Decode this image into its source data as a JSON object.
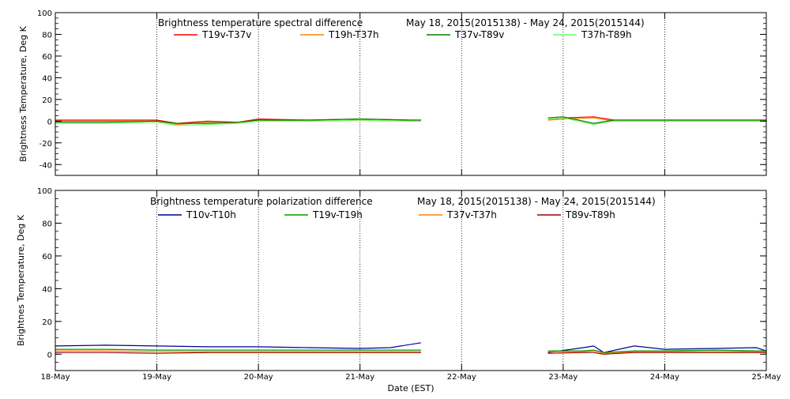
{
  "x_axis": {
    "title": "Date (EST)",
    "tick_labels": [
      "18-May",
      "19-May",
      "20-May",
      "21-May",
      "22-May",
      "23-May",
      "24-May",
      "25-May"
    ]
  },
  "chart_data": [
    {
      "type": "line",
      "title": "Brightness temperature spectral difference",
      "subtitle": "May 18, 2015(2015138) - May 24, 2015(2015144)",
      "xlabel": "",
      "ylabel": "Brightness Temperature, Deg K",
      "x_unit": "day of May 2015",
      "xlim": [
        18,
        25
      ],
      "ylim": [
        -50,
        100
      ],
      "yticks": [
        -40,
        -20,
        0,
        20,
        40,
        60,
        80,
        100
      ],
      "ytick_labels": [
        "-40",
        "-20",
        "0",
        "20",
        "40",
        "60",
        "80",
        "100"
      ],
      "grid": "vertical dotted lines at each day",
      "legend_position": "top",
      "series": [
        {
          "name": "T19v-T37v",
          "color": "#ff0000",
          "x": [
            18.0,
            18.5,
            19.0,
            19.2,
            19.5,
            19.8,
            20.0,
            20.5,
            21.0,
            21.5,
            21.6,
            22.85,
            23.0,
            23.3,
            23.5,
            24.0,
            24.5,
            25.0
          ],
          "values": [
            1,
            1,
            1,
            -2,
            0,
            -1,
            2,
            1,
            2,
            1,
            1,
            2,
            3,
            4,
            1,
            1,
            1,
            1
          ]
        },
        {
          "name": "T19h-T37h",
          "color": "#ff8000",
          "x": [
            18.0,
            18.5,
            19.0,
            19.2,
            19.5,
            19.8,
            20.0,
            20.5,
            21.0,
            21.5,
            21.6,
            22.85,
            23.0,
            23.3,
            23.5,
            24.0,
            24.5,
            25.0
          ],
          "values": [
            0,
            0,
            0,
            -3,
            -1,
            -2,
            1,
            0,
            1,
            0,
            0,
            1,
            2,
            3,
            0,
            0,
            0,
            0
          ]
        },
        {
          "name": "T37v-T89v",
          "color": "#008000",
          "x": [
            18.0,
            18.5,
            19.0,
            19.2,
            19.5,
            19.8,
            20.0,
            20.5,
            21.0,
            21.5,
            21.6,
            22.85,
            23.0,
            23.3,
            23.5,
            24.0,
            24.5,
            25.0
          ],
          "values": [
            -1,
            -1,
            0,
            -2,
            -2,
            -1,
            1,
            1,
            2,
            1,
            1,
            3,
            4,
            -2,
            1,
            1,
            1,
            1
          ]
        },
        {
          "name": "T37h-T89h",
          "color": "#66ff66",
          "x": [
            18.0,
            18.5,
            19.0,
            19.2,
            19.5,
            19.8,
            20.0,
            20.5,
            21.0,
            21.5,
            21.6,
            22.85,
            23.0,
            23.3,
            23.5,
            24.0,
            24.5,
            25.0
          ],
          "values": [
            -2,
            -2,
            -1,
            -4,
            -3,
            -2,
            0,
            0,
            1,
            0,
            0,
            2,
            3,
            -3,
            0,
            0,
            0,
            0
          ]
        }
      ]
    },
    {
      "type": "line",
      "title": "Brightness temperature polarization difference",
      "subtitle": "May 18, 2015(2015138) - May 24, 2015(2015144)",
      "xlabel": "Date (EST)",
      "ylabel": "Brightnes Temperature, Deg K",
      "x_unit": "day of May 2015",
      "xlim": [
        18,
        25
      ],
      "ylim": [
        -10,
        100
      ],
      "yticks": [
        0,
        20,
        40,
        60,
        80,
        100
      ],
      "ytick_labels": [
        "0",
        "20",
        "40",
        "60",
        "80",
        "100"
      ],
      "grid": "vertical dotted lines at each day",
      "legend_position": "top",
      "series": [
        {
          "name": "T10v-T10h",
          "color": "#000099",
          "x": [
            18.0,
            18.5,
            19.0,
            19.5,
            20.0,
            20.5,
            21.0,
            21.3,
            21.6,
            22.85,
            23.2,
            23.3,
            23.4,
            23.7,
            24.0,
            24.5,
            24.9,
            25.0
          ],
          "values": [
            5,
            5.5,
            5,
            4.5,
            4.5,
            4,
            3.5,
            4,
            7,
            1,
            4,
            5,
            1,
            5,
            3,
            3.5,
            4,
            2
          ]
        },
        {
          "name": "T19v-T19h",
          "color": "#009900",
          "x": [
            18.0,
            18.5,
            19.0,
            19.5,
            20.0,
            20.5,
            21.0,
            21.3,
            21.6,
            22.85,
            23.2,
            23.3,
            23.4,
            23.7,
            24.0,
            24.5,
            24.9,
            25.0
          ],
          "values": [
            3,
            3,
            2.5,
            2.5,
            2.5,
            2.5,
            2.5,
            2.5,
            2.5,
            2,
            2,
            2.5,
            1,
            2,
            2,
            2.5,
            2,
            2
          ]
        },
        {
          "name": "T37v-T37h",
          "color": "#ff8000",
          "x": [
            18.0,
            18.5,
            19.0,
            19.5,
            20.0,
            20.5,
            21.0,
            21.3,
            21.6,
            22.85,
            23.2,
            23.3,
            23.4,
            23.7,
            24.0,
            24.5,
            24.9,
            25.0
          ],
          "values": [
            2,
            2,
            1.5,
            1.5,
            1.5,
            1.5,
            1.5,
            1.5,
            1.5,
            1.5,
            1.5,
            2,
            0.5,
            1.5,
            1.5,
            1.5,
            1.5,
            1.5
          ]
        },
        {
          "name": "T89v-T89h",
          "color": "#990000",
          "x": [
            18.0,
            18.5,
            19.0,
            19.5,
            20.0,
            20.5,
            21.0,
            21.3,
            21.6,
            22.85,
            23.2,
            23.3,
            23.4,
            23.7,
            24.0,
            24.5,
            24.9,
            25.0
          ],
          "values": [
            1,
            1,
            0.5,
            1,
            1,
            1,
            1,
            1,
            1,
            0.5,
            1,
            1,
            0,
            1,
            1,
            1,
            1,
            1
          ]
        }
      ]
    }
  ]
}
